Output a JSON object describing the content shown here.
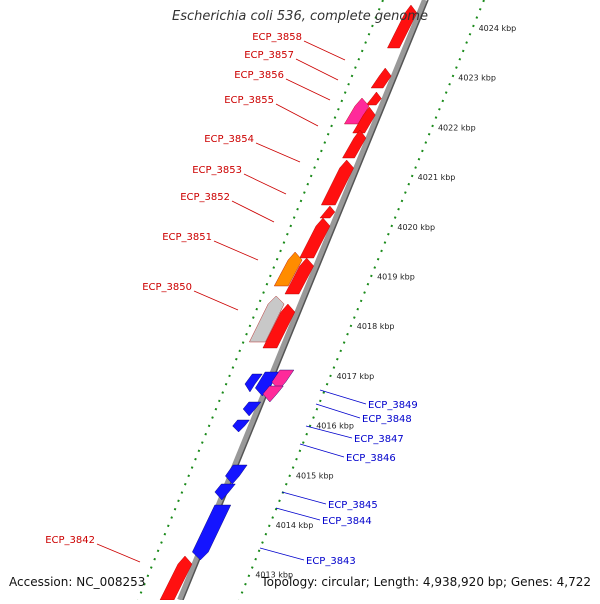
{
  "title": "Escherichia coli 536, complete genome",
  "footer": {
    "accession": "Accession: NC_008253",
    "summary": "Topology: circular; Length: 4,938,920 bp; Genes: 4,722"
  },
  "colors": {
    "backbone": "#888888",
    "tick_dots": "#1a8a1a",
    "forward_label": "#cc0000",
    "reverse_label": "#0000cc",
    "gene_red": "#ff1010",
    "gene_blue": "#1414ff",
    "gene_pink": "#ff2a9a",
    "gene_orange": "#ff8c00",
    "gene_gray": "#c8c8c8"
  },
  "ticks": [
    "4024 kbp",
    "4023 kbp",
    "4022 kbp",
    "4021 kbp",
    "4020 kbp",
    "4019 kbp",
    "4018 kbp",
    "4017 kbp",
    "4016 kbp",
    "4015 kbp",
    "4014 kbp",
    "4013 kbp"
  ],
  "forward_labels": [
    "ECP_3858",
    "ECP_3857",
    "ECP_3856",
    "ECP_3855",
    "ECP_3854",
    "ECP_3853",
    "ECP_3852",
    "ECP_3851",
    "ECP_3850",
    "ECP_3842"
  ],
  "reverse_labels": [
    "ECP_3849",
    "ECP_3848",
    "ECP_3847",
    "ECP_3846",
    "ECP_3845",
    "ECP_3844",
    "ECP_3843"
  ]
}
